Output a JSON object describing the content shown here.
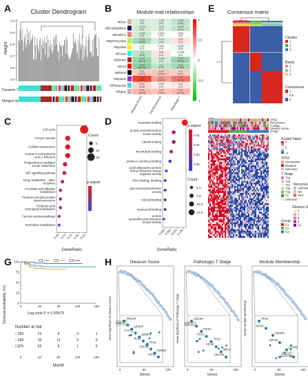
{
  "panels": {
    "A": {
      "letter": "A",
      "title": "Cluster Dendrogram",
      "ylabel": "Height",
      "bar1": "Dynamic Tree Cut",
      "bar2": "Merged dynamic",
      "ticks": [
        "1.0",
        "0.9",
        "0.8",
        "0.7",
        "0.6",
        "0.5"
      ]
    },
    "B": {
      "letter": "B",
      "title": "Module-trait relationships",
      "rows": [
        "MEtan",
        "MEmidnightblue",
        "MEsalmon",
        "MEgreenyellow",
        "MEyellow",
        "MEcyan",
        "MEbrown",
        "MEred",
        "MEblack",
        "MEpurple",
        "MEturquoise",
        "MEgrey"
      ],
      "row_colors": [
        "#d2b48c",
        "#191970",
        "#fa8072",
        "#adff2f",
        "#ffff00",
        "#00ffff",
        "#a52a2a",
        "#ff0000",
        "#000000",
        "#a020f0",
        "#40e0d0",
        "#bebebe"
      ],
      "cols": [
        "Gleason Score",
        "Biochemical Recurrence",
        "Pathologic T"
      ],
      "cells": [
        [
          "-0.06 (0.2)",
          "-0.06 (0.2)",
          "-0.095 (0.03)"
        ],
        [
          "-0.075 (0.1)",
          "-0.06 (0.2)",
          "-0.093 (0.04)"
        ],
        [
          "-0.069 (0.1)",
          "0.0054 (0.9)",
          "0.006 (0.9)"
        ],
        [
          "-0.13 (0.003)",
          "-0.06 (0.2)",
          "0.067 (0.1)"
        ],
        [
          "-0.02 (0.7)",
          "0.0067 (0.9)",
          "-0.031 (0.5)"
        ],
        [
          "-0.1 (0.03)",
          "0.06 (0.2)",
          "-0.0055 (0.9)"
        ],
        [
          "-0.15 (8e-04)",
          "-0.063 (0.2)",
          "-0.15 (9e-04)"
        ],
        [
          "-0.17 (1e-04)",
          "-0.1 (0.03)",
          "-0.13 (0.004)"
        ],
        [
          "0.12 (0.007)",
          "0.13 (0.003)",
          "0.11 (0.01)"
        ],
        [
          "0.41 (5e-21)",
          "0.21 (2e-06)",
          "0.3 (1e-11)"
        ],
        [
          "0.087 (0.05)",
          "0.038 (0.4)",
          "0.05 (0.3)"
        ],
        [
          "0.16 (3e-04)",
          "0.13 (0.004)",
          "0.16 (3e-04)"
        ]
      ],
      "cell_values": [
        [
          -0.06,
          -0.06,
          -0.095
        ],
        [
          -0.075,
          -0.06,
          -0.093
        ],
        [
          -0.069,
          0.0054,
          0.006
        ],
        [
          -0.13,
          -0.06,
          0.067
        ],
        [
          -0.02,
          0.0067,
          -0.031
        ],
        [
          -0.1,
          0.06,
          -0.0055
        ],
        [
          -0.15,
          -0.063,
          -0.15
        ],
        [
          -0.17,
          -0.1,
          -0.13
        ],
        [
          0.12,
          0.13,
          0.11
        ],
        [
          0.41,
          0.21,
          0.3
        ],
        [
          0.087,
          0.038,
          0.05
        ],
        [
          0.16,
          0.13,
          0.16
        ]
      ],
      "scale_ticks": [
        "1",
        "0.5",
        "0",
        "-0.5",
        "-1"
      ]
    },
    "C": {
      "letter": "C",
      "xlabel": "GeneRatio",
      "x_ticks": [
        "0.05",
        "0.10",
        "0.15",
        "0.20",
        "0.25"
      ],
      "count_title": "Count",
      "count_values": [
        "5",
        "10",
        "15"
      ],
      "padj_title": "p.adjust",
      "terms": [
        "Cell cycle",
        "Oocyte meiosis",
        "Cellular senescence",
        "Human T-cell leukemia virus 1 infection",
        "Progesterone-mediated oocyte maturation",
        "p53 signaling pathway",
        "Drug metabolism - other enzymes",
        "Ascorbate and aldarate metabolism",
        "Pentose and glucuronate interconversions",
        "Porphyrin and chlorophyll metabolism",
        "Fanconi anemia pathway",
        "Pyrimidine metabolism"
      ],
      "gene_ratio": [
        0.24,
        0.115,
        0.115,
        0.115,
        0.095,
        0.09,
        0.075,
        0.06,
        0.06,
        0.06,
        0.05,
        0.05
      ],
      "counts": [
        17,
        9,
        9,
        9,
        7,
        6,
        5,
        4,
        4,
        4,
        3,
        3
      ],
      "padj_rank": [
        0,
        0.05,
        0.1,
        0.15,
        0.2,
        0.25,
        0.45,
        0.6,
        0.65,
        0.7,
        0.85,
        1.0
      ]
    },
    "D": {
      "letter": "D",
      "xlabel": "GeneRatio",
      "x_ticks": [
        "0.025",
        "0.050",
        "0.075",
        "0.100"
      ],
      "count_title": "Count",
      "count_values": [
        "5.0",
        "7.5",
        "10.0",
        "12.5"
      ],
      "padj_title": "p.adjust",
      "padj_ticks": [
        "0.01",
        "0.02",
        "0.03",
        "0.04"
      ],
      "terms": [
        "chromatin binding",
        "protein serine/threonine kinase activity",
        "tubulin binding",
        "microtubule binding",
        "protein C-terminus binding",
        "cyclin-dependent protein serine/ threonine kinase regulator activity",
        "DNA binding, bending",
        "glucuronosyltransferase activity",
        "retinoid binding",
        "isoprenoid binding",
        "protein serine/threonine/tyrosine kinase activity"
      ],
      "gene_ratio": [
        0.105,
        0.06,
        0.06,
        0.05,
        0.045,
        0.03,
        0.025,
        0.025,
        0.025,
        0.025,
        0.02
      ],
      "counts": [
        13,
        7,
        7,
        6,
        5,
        4,
        4,
        4,
        4,
        4,
        3
      ],
      "padj_rank": [
        0,
        0.4,
        0.45,
        0.55,
        1.0,
        0.8,
        0.85,
        0.85,
        0.85,
        0.85,
        0.9
      ]
    },
    "E": {
      "letter": "E",
      "title": "Consensus matrix",
      "legend_cluster": "Cluster",
      "legend_basis": "Basis",
      "legend_consensus": "Consensus",
      "levels": [
        "1",
        "2",
        "3"
      ],
      "consensus_ticks": [
        "1",
        "0.5",
        "0"
      ]
    },
    "F": {
      "letter": "F",
      "track_labels": [
        "TP53",
        "Recurrence",
        "T Stage",
        "Gleason Score",
        "Group"
      ],
      "scaled_title": "Scaled Value",
      "scaled_ticks": [
        "3",
        "0",
        "-3"
      ],
      "tp53_title": "TP53",
      "tp53_levels": [
        "Unmutation",
        "Mutation",
        "Unknown"
      ],
      "tstage_title": "T Stage",
      "tstage_levels": [
        "T2a",
        "T2b",
        "T2c",
        "T3a",
        "T3b",
        "T4",
        "Unknown"
      ],
      "recurrence_title": "Recurrence",
      "recurrence_levels": [
        "Unknown",
        "NO",
        "YES"
      ],
      "gleason_title": "Gleason Score",
      "gleason_levels": [
        "6",
        "7",
        "8",
        "9",
        "10"
      ],
      "group_title": "Group",
      "group_levels": [
        "C1",
        "C2",
        "C3"
      ]
    },
    "G": {
      "letter": "G",
      "ylabel": "Survival probability (%)",
      "xlabel": "Month",
      "legend": [
        "C1",
        "C2",
        "C3"
      ],
      "pvalue": "Log-rank P = 0.00073",
      "risk_title": "Number at risk",
      "y_ticks": [
        "100",
        "75",
        "50",
        "25",
        "0"
      ],
      "x_ticks": [
        "0",
        "40",
        "80",
        "120",
        "160"
      ],
      "risk_rows": [
        [
          "156",
          "23",
          "8",
          "3",
          "1"
        ],
        [
          "158",
          "33",
          "11",
          "0",
          "0"
        ],
        [
          "175",
          "55",
          "8",
          "1",
          "0"
        ]
      ]
    },
    "H": {
      "letter": "H",
      "subpanels": [
        {
          "title": "Gleason Score",
          "ylabel": "Gene Significant of Gleason Score",
          "xlabel": "Genes",
          "x_ticks": [
            "0",
            "50",
            "100"
          ],
          "labels": [
            "TROAP",
            "UBE2C",
            "CENPF",
            "PTTG1",
            "CENPA",
            "PLK1",
            "TPX2",
            "CDC20",
            "CDKN3",
            "KIF2C"
          ],
          "highlight": "UBE2C"
        },
        {
          "title": "Pathologic T Stage",
          "ylabel": "Gene Significant of Pathologic T Stage",
          "xlabel": "Genes",
          "x_ticks": [
            "0",
            "50",
            "100"
          ],
          "labels": [
            "CDC20",
            "UBE2C",
            "KIF2C",
            "PLK1",
            "TPX2",
            "KIF4A",
            "MELK",
            "CDCA8"
          ],
          "highlight": "UBE2C"
        },
        {
          "title": "Module Membership",
          "ylabel": "Genen Module Membership",
          "xlabel": "Genes",
          "x_ticks": [
            "0",
            "50",
            "100"
          ],
          "labels": [
            "TPX2",
            "KIF4A",
            "CENPA",
            "ASF1B",
            "CEP55",
            "UBE2C"
          ],
          "highlight": "UBE2C"
        }
      ]
    }
  },
  "colors": {
    "accent_red": "#e41a1c",
    "accent_blue": "#3c3c9c",
    "teal": "#2b7a9c",
    "light_dot": "#a9c4de",
    "c1": "#2ca8c4",
    "c2": "#d9a52b",
    "c3": "#3e5a9c"
  }
}
